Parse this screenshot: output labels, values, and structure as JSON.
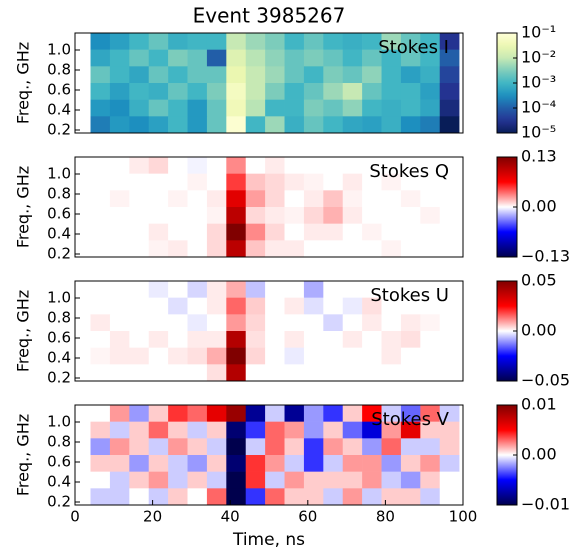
{
  "chart_data": [
    {
      "type": "heatmap",
      "title": "Event 3985267",
      "label": "Stokes I",
      "label_color": "#ffffff",
      "ylabel": "Freq., GHz",
      "colormap": "YlGnBu",
      "log": true,
      "xlim": [
        0,
        100
      ],
      "xbins": [
        4,
        9,
        14,
        19,
        24,
        29,
        34,
        39,
        44,
        49,
        54,
        59,
        64,
        69,
        74,
        79,
        84,
        89,
        94,
        99
      ],
      "ylim": [
        0.17,
        1.17
      ],
      "yticks": [
        0.2,
        0.4,
        0.6,
        0.8,
        {
          "value": 1.0,
          "label": "1.0"
        }
      ],
      "clim": [
        1e-05,
        0.1
      ],
      "cticks": [
        {
          "value": 0.1,
          "label": "10⁻¹"
        },
        {
          "value": 0.01,
          "label": "10⁻²"
        },
        {
          "value": 0.001,
          "label": "10⁻³"
        },
        {
          "value": 0.0001,
          "label": "10⁻⁴"
        },
        {
          "value": 1e-05,
          "label": "10⁻⁵"
        }
      ],
      "values": [
        [
          0.0003,
          0.0005,
          0.001,
          0.002,
          0.0008,
          0.001,
          0.001,
          0.01,
          0.005,
          0.003,
          0.001,
          0.002,
          0.001,
          0.0008,
          0.001,
          0.005,
          0.002,
          0.001,
          3e-05
        ],
        [
          0.0006,
          0.001,
          0.002,
          0.001,
          0.003,
          0.002,
          0.0001,
          0.02,
          0.008,
          0.004,
          0.002,
          0.003,
          0.002,
          0.001,
          0.002,
          0.001,
          0.002,
          0.001,
          0.0001
        ],
        [
          0.002,
          0.001,
          0.0006,
          0.002,
          0.001,
          0.002,
          0.002,
          0.03,
          0.01,
          0.005,
          0.002,
          0.001,
          0.003,
          0.002,
          0.004,
          0.001,
          0.0005,
          0.0008,
          5e-05
        ],
        [
          0.001,
          0.0005,
          0.001,
          0.0008,
          0.002,
          0.001,
          0.003,
          0.05,
          0.01,
          0.003,
          0.001,
          0.002,
          0.005,
          0.01,
          0.002,
          0.001,
          0.001,
          0.0005,
          3e-05
        ],
        [
          0.0004,
          0.0003,
          0.0008,
          0.002,
          0.001,
          0.0004,
          0.002,
          0.04,
          0.008,
          0.001,
          0.001,
          0.003,
          0.002,
          0.004,
          0.001,
          0.0008,
          0.001,
          0.0006,
          2e-05
        ],
        [
          0.0002,
          0.0004,
          0.0003,
          0.0005,
          0.001,
          0.0004,
          0.002,
          0.08,
          0.001,
          0.005,
          0.0008,
          0.002,
          0.001,
          0.0006,
          0.0005,
          0.0008,
          0.0003,
          0.0002,
          1e-05
        ]
      ]
    },
    {
      "type": "heatmap",
      "label": "Stokes Q",
      "label_color": "#000000",
      "ylabel": "Freq., GHz",
      "colormap": "seismic",
      "log": false,
      "xlim": [
        0,
        100
      ],
      "xbins": [
        4,
        9,
        14,
        19,
        24,
        29,
        34,
        39,
        44,
        49,
        54,
        59,
        64,
        69,
        74,
        79,
        84,
        89,
        94,
        99
      ],
      "ylim": [
        0.17,
        1.17
      ],
      "yticks": [
        0.2,
        0.4,
        0.6,
        0.8,
        {
          "value": 1.0,
          "label": "1.0"
        }
      ],
      "clim": [
        -0.13,
        0.13
      ],
      "cticks": [
        0.13,
        {
          "value": 0,
          "label": "0.00"
        },
        {
          "value": -0.13,
          "label": "−0.13"
        }
      ],
      "values": [
        [
          0,
          0,
          0.005,
          0.01,
          0,
          -0.003,
          0,
          0.03,
          0,
          0.005,
          0,
          0,
          0,
          0,
          0,
          0,
          0,
          0,
          0
        ],
        [
          0,
          0,
          0,
          0,
          0,
          0.003,
          0,
          0.05,
          0.015,
          0.01,
          0.005,
          0.003,
          0,
          0.005,
          0,
          0.003,
          0,
          0,
          0
        ],
        [
          0,
          0.003,
          0,
          0,
          0.003,
          0,
          0.005,
          0.08,
          0.025,
          0.01,
          0,
          0.005,
          0.015,
          0.003,
          0,
          0,
          0.003,
          0,
          0
        ],
        [
          0,
          0,
          0,
          0,
          0,
          0,
          0.003,
          0.1,
          0.01,
          0.005,
          0.003,
          0.01,
          0.02,
          0.005,
          0,
          0,
          0,
          0.003,
          0
        ],
        [
          0,
          0,
          0,
          0.005,
          0,
          0,
          0.01,
          0.13,
          0.03,
          0.01,
          0,
          0.005,
          0.005,
          0,
          0.003,
          0,
          0,
          0,
          0
        ],
        [
          0,
          0,
          0,
          0.003,
          0.005,
          0,
          0.01,
          0.1,
          0.015,
          0.005,
          0.005,
          0,
          0,
          0,
          0,
          0.003,
          0,
          0,
          0
        ]
      ]
    },
    {
      "type": "heatmap",
      "label": "Stokes U",
      "label_color": "#000000",
      "ylabel": "Freq., GHz",
      "colormap": "seismic",
      "log": false,
      "xlim": [
        0,
        100
      ],
      "xbins": [
        4,
        9,
        14,
        19,
        24,
        29,
        34,
        39,
        44,
        49,
        54,
        59,
        64,
        69,
        74,
        79,
        84,
        89,
        94,
        99
      ],
      "ylim": [
        0.17,
        1.17
      ],
      "yticks": [
        0.2,
        0.4,
        0.6,
        0.8,
        {
          "value": 1.0,
          "label": "1.0"
        }
      ],
      "clim": [
        -0.05,
        0.05
      ],
      "cticks": [
        0.05,
        {
          "value": 0,
          "label": "0.00"
        },
        {
          "value": -0.05,
          "label": "−0.05"
        }
      ],
      "values": [
        [
          0,
          0,
          0,
          -0.002,
          0,
          -0.004,
          0.002,
          0.008,
          -0.006,
          0,
          0,
          -0.008,
          0,
          0,
          0,
          0,
          0,
          0,
          0
        ],
        [
          0,
          0,
          0,
          0,
          -0.003,
          0,
          0.002,
          0.015,
          0.005,
          0,
          0.002,
          -0.003,
          0,
          -0.002,
          0.003,
          0,
          0,
          0,
          0
        ],
        [
          0.002,
          0,
          0,
          0,
          0,
          -0.002,
          0,
          0.01,
          0.004,
          0,
          0,
          0,
          -0.004,
          0,
          0.002,
          0,
          0.002,
          0.001,
          0
        ],
        [
          0,
          0.002,
          0,
          0.002,
          0,
          0.002,
          0.002,
          0.04,
          0.003,
          0,
          0.002,
          0,
          0,
          0.002,
          0,
          0.002,
          0.003,
          0,
          0
        ],
        [
          0.001,
          0.002,
          0.002,
          0,
          0.002,
          0.003,
          0.008,
          0.05,
          0.004,
          0,
          -0.002,
          0,
          0,
          0,
          0,
          0.002,
          0,
          0,
          0
        ],
        [
          0,
          0,
          0,
          0,
          0,
          0,
          0.003,
          0.04,
          0,
          0,
          0,
          0,
          0,
          0,
          0,
          0,
          0,
          0,
          0
        ]
      ]
    },
    {
      "type": "heatmap",
      "label": "Stokes V",
      "label_color": "#000000",
      "ylabel": "Freq., GHz",
      "xlabel": "Time, ns",
      "colormap": "seismic",
      "log": false,
      "xlim": [
        0,
        100
      ],
      "xbins": [
        4,
        9,
        14,
        19,
        24,
        29,
        34,
        39,
        44,
        49,
        54,
        59,
        64,
        69,
        74,
        79,
        84,
        89,
        94,
        99
      ],
      "ylim": [
        0.17,
        1.17
      ],
      "xticks": [
        0,
        20,
        40,
        60,
        80,
        100
      ],
      "yticks": [
        0.2,
        0.4,
        0.6,
        0.8,
        {
          "value": 1.0,
          "label": "1.0"
        }
      ],
      "clim": [
        -0.01,
        0.01
      ],
      "cticks": [
        0.01,
        {
          "value": 0,
          "label": "0.00"
        },
        {
          "value": -0.01,
          "label": "−0.01"
        }
      ],
      "values": [
        [
          0,
          0.002,
          -0.002,
          0.001,
          0.004,
          0.003,
          0.006,
          0.009,
          -0.008,
          -0.001,
          -0.008,
          -0.002,
          -0.004,
          0.001,
          0.005,
          -0.001,
          -0.003,
          0.003,
          -0.001
        ],
        [
          0.001,
          -0.001,
          0.001,
          0.003,
          0.001,
          -0.001,
          0.001,
          -0.009,
          -0.004,
          0.003,
          0.002,
          -0.002,
          0.001,
          -0.003,
          -0.006,
          0.002,
          0.006,
          0.001,
          0.001
        ],
        [
          -0.002,
          0.002,
          0.001,
          -0.001,
          0.002,
          0.001,
          -0.001,
          -0.01,
          -0.001,
          0.003,
          0.001,
          -0.004,
          0.002,
          0.001,
          -0.002,
          0.003,
          -0.001,
          -0.001,
          0.001
        ],
        [
          0.001,
          0.001,
          -0.002,
          0.001,
          -0.001,
          -0.002,
          0.001,
          -0.009,
          0.004,
          0.002,
          -0.001,
          -0.004,
          -0.001,
          0.002,
          0.002,
          -0.002,
          0.001,
          0.002,
          -0.001
        ],
        [
          0,
          -0.001,
          0.001,
          0.002,
          -0.001,
          0.001,
          -0.001,
          -0.01,
          0.004,
          -0.001,
          0.002,
          0.001,
          0.001,
          0.001,
          0.002,
          -0.001,
          -0.002,
          0.001,
          0
        ],
        [
          -0.001,
          -0.001,
          0,
          -0.001,
          0.001,
          0,
          0.003,
          -0.01,
          -0.004,
          0.003,
          0.001,
          0.001,
          -0.001,
          0.002,
          -0.001,
          0.001,
          0.001,
          -0.001,
          0
        ]
      ]
    }
  ]
}
